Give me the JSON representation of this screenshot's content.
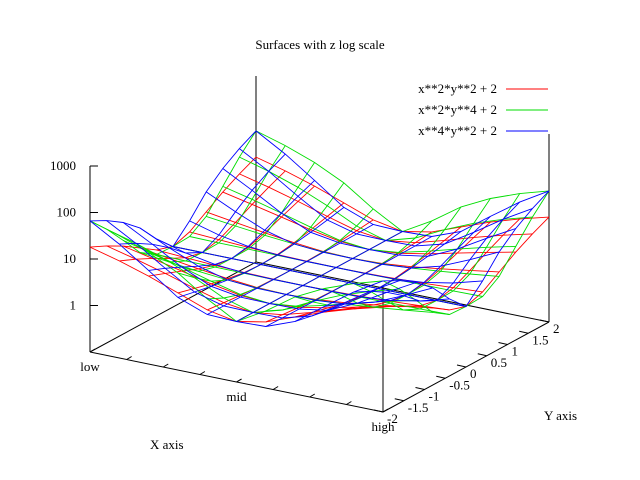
{
  "chart_data": {
    "type": "surface",
    "title": "Surfaces with z log scale",
    "xlabel": "X axis",
    "ylabel": "Y axis",
    "zscale": "log",
    "x_ticks": [
      "low",
      "mid",
      "high"
    ],
    "y_ticks": [
      "-2",
      "-1.5",
      "-1",
      "-0.5",
      "0",
      "0.5",
      "1",
      "1.5",
      "2"
    ],
    "z_ticks": [
      "1",
      "10",
      "100",
      "1000"
    ],
    "xrange": [
      -2,
      2
    ],
    "yrange": [
      -2,
      2
    ],
    "zrange": [
      0.1,
      1000
    ],
    "grid_points": 11,
    "legend_position": "top-right",
    "series": [
      {
        "name": "x**2*y**2 + 2",
        "fx": 2,
        "fy": 2,
        "color": "#ff0000"
      },
      {
        "name": "x**2*y**4 + 2",
        "fx": 2,
        "fy": 4,
        "color": "#00dd00"
      },
      {
        "name": "x**4*y**2 + 2",
        "fx": 4,
        "fy": 2,
        "color": "#0000ff"
      }
    ]
  }
}
